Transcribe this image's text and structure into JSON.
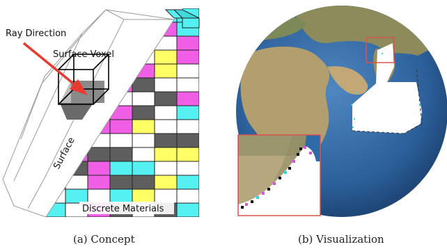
{
  "figure": {
    "concept": {
      "caption": "(a) Concept",
      "labels": {
        "ray_direction": "Ray Direction",
        "surface_voxel": "Surface Voxel",
        "surface": "Surface",
        "discrete_materials": "Discrete Materials"
      }
    },
    "visualization": {
      "caption": "(b) Visualization"
    }
  },
  "colors": {
    "cyan": "#55f0f2",
    "magenta": "#f05ee6",
    "gray": "#5e5e5e",
    "yellow": "#ffff66",
    "ray": "#e83a2f",
    "inset_border": "#d9534f",
    "ocean": "#2e6aa6",
    "land": "#a89a6a"
  }
}
